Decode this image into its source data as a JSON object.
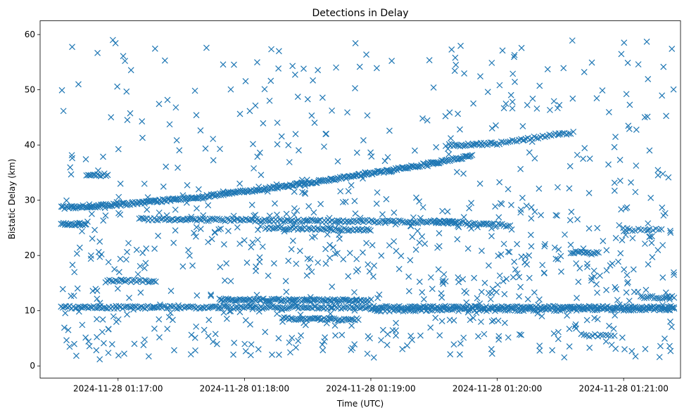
{
  "chart_data": {
    "type": "scatter",
    "title": "Detections in Delay",
    "xlabel": "Time (UTC)",
    "ylabel": "Bistatic Delay (km)",
    "marker": "x",
    "color": "#1f77b4",
    "grid": false,
    "legend": "none",
    "x_date": "2024-11-28",
    "xlim": [
      "01:16:23",
      "01:21:27"
    ],
    "ylim": [
      -2.2,
      62.5
    ],
    "x_ticks": [
      "01:17:00",
      "01:18:00",
      "01:19:00",
      "01:20:00",
      "01:21:00"
    ],
    "x_tick_labels": [
      "2024-11-28 01:17:00",
      "2024-11-28 01:18:00",
      "2024-11-28 01:19:00",
      "2024-11-28 01:20:00",
      "2024-11-28 01:21:00"
    ],
    "y_ticks": [
      0,
      10,
      20,
      30,
      40,
      50,
      60
    ],
    "y_tick_labels": [
      "0",
      "10",
      "20",
      "30",
      "40",
      "50",
      "60"
    ],
    "tracks": [
      {
        "x": [
          "01:16:33",
          "01:19:48"
        ],
        "y": [
          28.7,
          38.0
        ],
        "curve": 1.45,
        "count": 340
      },
      {
        "x": [
          "01:19:37",
          "01:19:59"
        ],
        "y": [
          39.9,
          40.3
        ],
        "curve": 1,
        "count": 30
      },
      {
        "x": [
          "01:20:00",
          "01:20:36"
        ],
        "y": [
          40.3,
          42.3
        ],
        "curve": 1,
        "count": 36
      },
      {
        "x": [
          "01:16:33",
          "01:21:24"
        ],
        "y": [
          10.6,
          10.6
        ],
        "curve": 1,
        "count": 360
      },
      {
        "x": [
          "01:17:48",
          "01:19:00"
        ],
        "y": [
          12.0,
          11.8
        ],
        "curve": 1,
        "count": 110
      },
      {
        "x": [
          "01:19:00",
          "01:21:24"
        ],
        "y": [
          10.1,
          10.3
        ],
        "curve": 1,
        "count": 150
      },
      {
        "x": [
          "01:18:18",
          "01:18:54"
        ],
        "y": [
          8.6,
          8.4
        ],
        "curve": 1,
        "count": 45
      },
      {
        "x": [
          "01:16:33",
          "01:16:45"
        ],
        "y": [
          25.8,
          25.6
        ],
        "curve": 1,
        "count": 22
      },
      {
        "x": [
          "01:17:10",
          "01:19:40"
        ],
        "y": [
          26.6,
          26.0
        ],
        "curve": 1,
        "count": 170
      },
      {
        "x": [
          "01:19:30",
          "01:20:06"
        ],
        "y": [
          26.2,
          25.4
        ],
        "curve": 1,
        "count": 40
      },
      {
        "x": [
          "01:16:45",
          "01:16:55"
        ],
        "y": [
          34.6,
          34.6
        ],
        "curve": 1,
        "count": 14
      },
      {
        "x": [
          "01:16:55",
          "01:17:18"
        ],
        "y": [
          15.4,
          15.4
        ],
        "curve": 1,
        "count": 26
      },
      {
        "x": [
          "01:18:10",
          "01:19:00"
        ],
        "y": [
          25.0,
          24.6
        ],
        "curve": 1,
        "count": 60
      },
      {
        "x": [
          "01:20:35",
          "01:20:48"
        ],
        "y": [
          20.6,
          20.4
        ],
        "curve": 1,
        "count": 18
      },
      {
        "x": [
          "01:21:08",
          "01:21:24"
        ],
        "y": [
          12.4,
          12.4
        ],
        "curve": 1,
        "count": 18
      },
      {
        "x": [
          "01:21:00",
          "01:21:18"
        ],
        "y": [
          24.6,
          24.6
        ],
        "curve": 1,
        "count": 14
      },
      {
        "x": [
          "01:20:40",
          "01:20:54"
        ],
        "y": [
          5.6,
          5.4
        ],
        "curve": 1,
        "count": 12
      }
    ],
    "scatter_noise": {
      "count": 520,
      "x_range": [
        "01:16:33",
        "01:21:24"
      ],
      "y_range": [
        1,
        59.5
      ]
    },
    "mid_noise": {
      "count": 320,
      "x_range": [
        "01:16:33",
        "01:21:24"
      ],
      "y_range": [
        2,
        30
      ]
    }
  }
}
